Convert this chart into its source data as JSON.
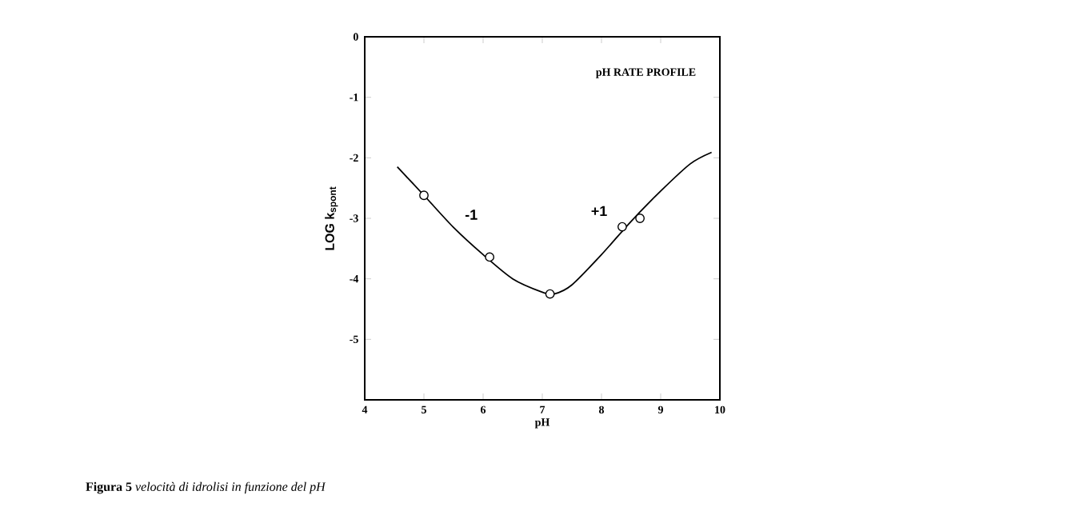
{
  "chart_data": {
    "type": "line",
    "title": "pH  RATE  PROFILE",
    "xlabel": "pH",
    "ylabel": "LOG k$_{spont}$",
    "xlim": [
      4,
      10
    ],
    "ylim": [
      -6,
      0
    ],
    "xticks": [
      4,
      5,
      6,
      7,
      8,
      9,
      10
    ],
    "yticks": [
      0,
      -1,
      -2,
      -3,
      -4,
      -5
    ],
    "series": [
      {
        "color": "#000000",
        "marker": "none",
        "x": [
          4.55,
          5.0,
          5.5,
          6.0,
          6.5,
          7.0,
          7.2,
          7.5,
          8.0,
          8.5,
          9.0,
          9.5,
          9.86
        ],
        "values": [
          -2.15,
          -2.62,
          -3.15,
          -3.6,
          -4.0,
          -4.22,
          -4.25,
          -4.1,
          -3.6,
          -3.05,
          -2.55,
          -2.1,
          -1.91
        ]
      },
      {
        "type": "scatter",
        "color": "#000000",
        "marker": "circle",
        "x": [
          5.0,
          6.11,
          7.13,
          8.35,
          8.65
        ],
        "values": [
          -2.62,
          -3.64,
          -4.25,
          -3.14,
          -3.0
        ]
      }
    ],
    "annotations": [
      "-1",
      "+1",
      "**Figura 5** *velocità di idrolisi in funzione del pH*"
    ]
  }
}
